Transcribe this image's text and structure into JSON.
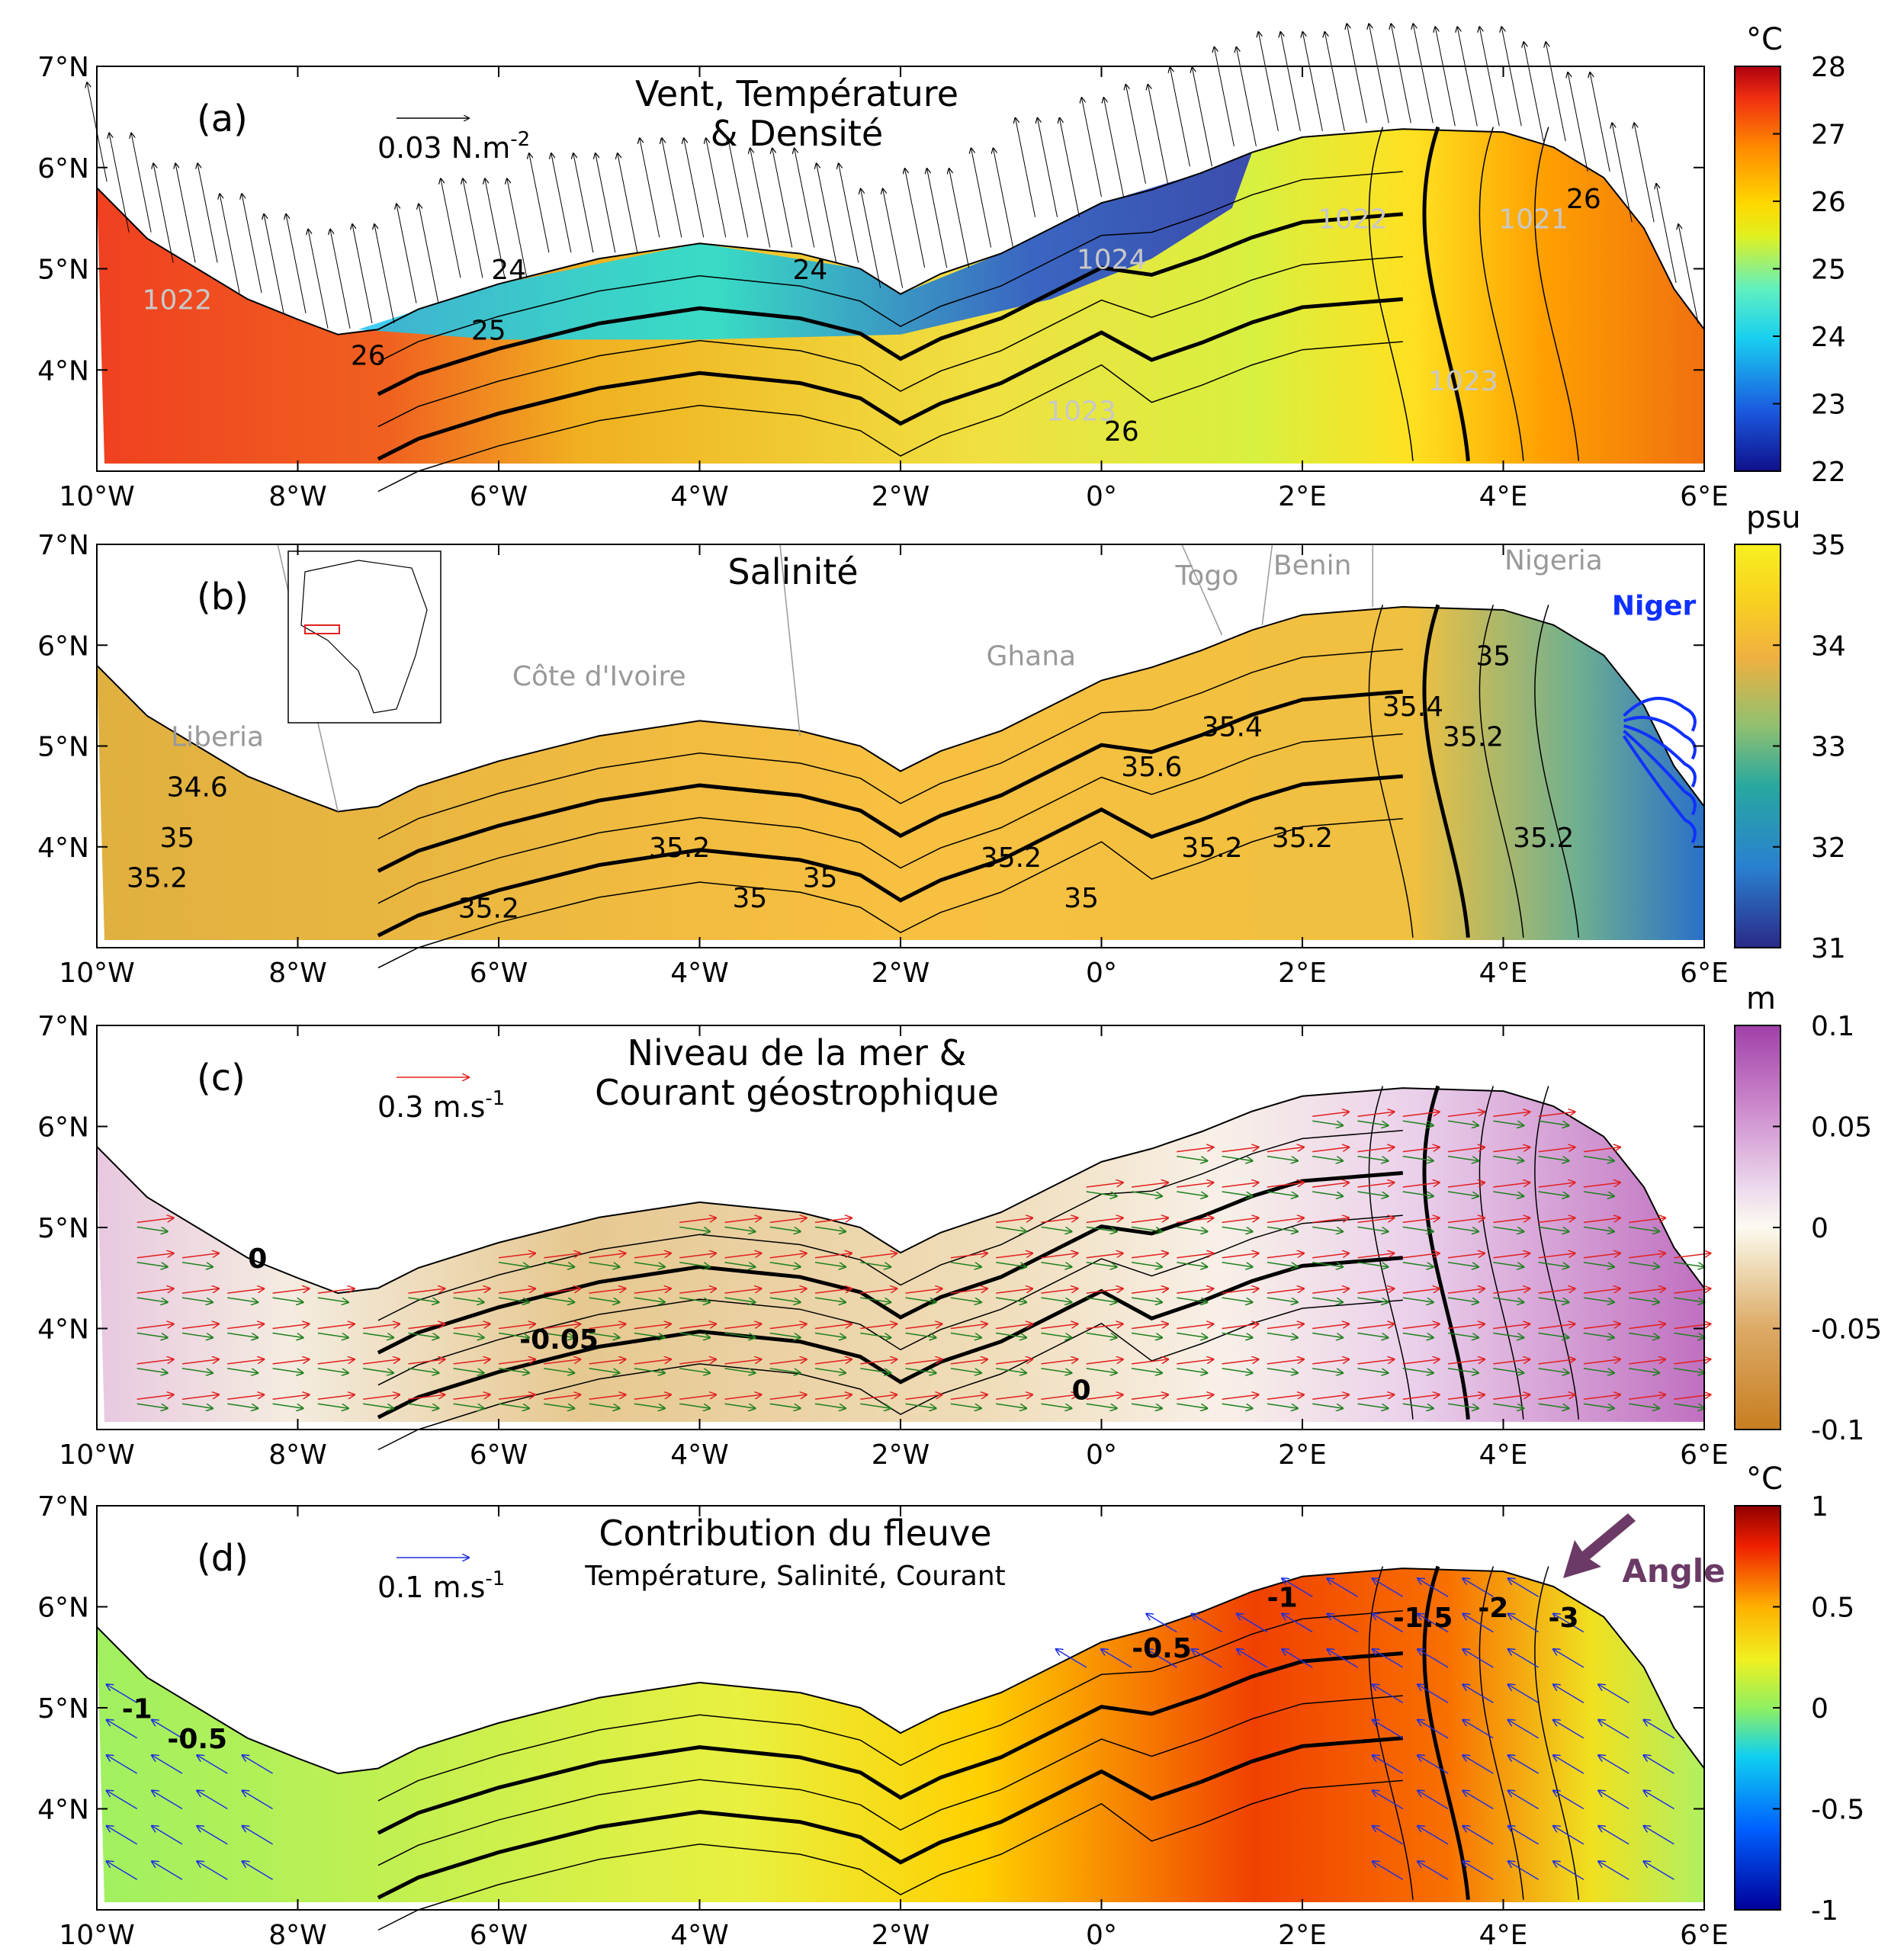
{
  "axes": {
    "lat_labels": [
      "7°N",
      "6°N",
      "5°N",
      "4°N"
    ],
    "lon_labels": [
      "10°W",
      "8°W",
      "6°W",
      "4°W",
      "2°W",
      "0°",
      "2°E",
      "4°E",
      "6°E"
    ]
  },
  "panels": [
    {
      "letter": "(a)",
      "title_lines": [
        "Vent, Température",
        "& Densité"
      ],
      "scale_label": "0.03 N.m",
      "scale_exp": "-2",
      "cb_unit": "°C",
      "cb_ticks": [
        "28",
        "27",
        "26",
        "25",
        "24",
        "23",
        "22"
      ],
      "contour_labels": [
        "1022",
        "24",
        "25",
        "26",
        "24",
        "1024",
        "1023",
        "1022",
        "1021",
        "26",
        "1023",
        "26"
      ]
    },
    {
      "letter": "(b)",
      "title_lines": [
        "Salinité"
      ],
      "cb_unit": "psu",
      "cb_ticks": [
        "35",
        "34",
        "33",
        "32",
        "31"
      ],
      "country_labels": [
        "Liberia",
        "Côte d'Ivoire",
        "Ghana",
        "Togo",
        "Benin",
        "Nigeria"
      ],
      "river_label": "Niger",
      "contour_labels": [
        "34.6",
        "35",
        "35.2",
        "35.2",
        "35.2",
        "35",
        "35",
        "35.6",
        "35.4",
        "35.2",
        "35.2",
        "35.2",
        "35.4",
        "35",
        "35.2",
        "35.2",
        "35"
      ]
    },
    {
      "letter": "(c)",
      "title_lines": [
        "Niveau de la mer &",
        "Courant géostrophique"
      ],
      "scale_label": "0.3 m.s",
      "scale_exp": "-1",
      "cb_unit": "m",
      "cb_ticks": [
        "0.1",
        "0.05",
        "0",
        "-0.05",
        "-0.1"
      ],
      "contour_labels": [
        "0",
        "-0.05",
        "0"
      ]
    },
    {
      "letter": "(d)",
      "title_lines": [
        "Contribution du fleuve",
        "Température, Salinité, Courant"
      ],
      "scale_label": "0.1 m.s",
      "scale_exp": "-1",
      "cb_unit": "°C",
      "cb_ticks": [
        "1",
        "0.5",
        "0",
        "-0.5",
        "-1"
      ],
      "annotation": "Angle",
      "contour_labels": [
        "-1",
        "-0.5",
        "-0.5",
        "-1",
        "-1.5",
        "-2",
        "-3"
      ]
    }
  ],
  "colors": {
    "temp_scale": [
      "#1a0f9e",
      "#1e55e0",
      "#19c8f0",
      "#5ef0c0",
      "#d8f020",
      "#ffd000",
      "#ff8a00",
      "#f03010",
      "#b00010"
    ],
    "salinity_scale": [
      "#2a2a8a",
      "#2a7fd0",
      "#28a8a0",
      "#8cc070",
      "#f0b040",
      "#f8d820",
      "#f8f020"
    ],
    "sla_scale": [
      "#c87e20",
      "#d8a860",
      "#ecd8b0",
      "#fbf8ee",
      "#ecd6ec",
      "#d090d0",
      "#a040a8"
    ],
    "current_obs": "#e02020",
    "current_model": "#208020",
    "current_river": "#2030e0",
    "niger_river": "#1030ff",
    "annotation": "#6b3a66"
  }
}
